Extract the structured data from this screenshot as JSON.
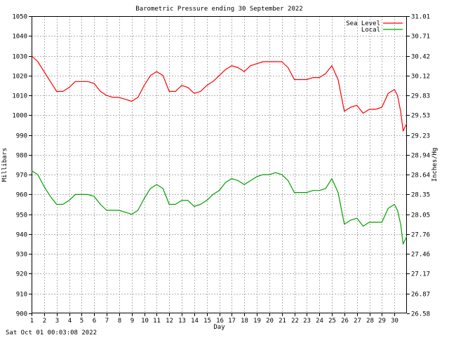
{
  "footer_timestamp": "Sat Oct 01 00:03:08 2022",
  "chart_data": {
    "type": "line",
    "title": "Barometric Pressure ending 30 September 2022",
    "xlabel": "Day",
    "ylabel": "Millibars",
    "y2label": "Inches/Hg",
    "xlim": [
      1,
      31
    ],
    "ylim": [
      900,
      1050
    ],
    "y_ticks": [
      900,
      910,
      920,
      930,
      940,
      950,
      960,
      970,
      980,
      990,
      1000,
      1010,
      1020,
      1030,
      1040,
      1050
    ],
    "y_tick_labels": [
      "900",
      "910",
      "920",
      "930",
      "940",
      "950",
      "960",
      "970",
      "980",
      "990",
      "1000",
      "1010",
      "1020",
      "1030",
      "1040",
      "1050"
    ],
    "y2_ticks": [
      900,
      910,
      920,
      930,
      940,
      950,
      960,
      970,
      980,
      990,
      1000,
      1010,
      1020,
      1030,
      1040,
      1050
    ],
    "y2_tick_labels": [
      "26.58",
      "26.87",
      "27.17",
      "27.46",
      "27.76",
      "28.05",
      "28.35",
      "28.64",
      "28.94",
      "29.23",
      "29.53",
      "29.83",
      "30.12",
      "30.42",
      "30.71",
      "31.01"
    ],
    "x_ticks": [
      1,
      2,
      3,
      4,
      5,
      6,
      7,
      8,
      9,
      10,
      11,
      12,
      13,
      14,
      15,
      16,
      17,
      18,
      19,
      20,
      21,
      22,
      23,
      24,
      25,
      26,
      27,
      28,
      29,
      30
    ],
    "x_tick_labels": [
      "1",
      "2",
      "3",
      "4",
      "5",
      "6",
      "7",
      "8",
      "9",
      "10",
      "11",
      "12",
      "13",
      "14",
      "15",
      "16",
      "17",
      "18",
      "19",
      "20",
      "21",
      "22",
      "23",
      "24",
      "25",
      "26",
      "27",
      "28",
      "29",
      "30"
    ],
    "grid": true,
    "legend_position": "top-right",
    "series": [
      {
        "name": "Sea Level",
        "color": "#ff0000",
        "x": [
          1.0,
          1.5,
          2.0,
          2.5,
          3.0,
          3.5,
          4.0,
          4.5,
          5.0,
          5.5,
          6.0,
          6.5,
          7.0,
          7.5,
          8.0,
          8.5,
          9.0,
          9.5,
          10.0,
          10.5,
          11.0,
          11.5,
          12.0,
          12.5,
          13.0,
          13.5,
          14.0,
          14.5,
          15.0,
          15.5,
          16.0,
          16.5,
          17.0,
          17.5,
          18.0,
          18.5,
          19.0,
          19.5,
          20.0,
          20.5,
          21.0,
          21.5,
          22.0,
          22.5,
          23.0,
          23.5,
          24.0,
          24.5,
          25.0,
          25.5,
          26.0,
          26.5,
          27.0,
          27.5,
          28.0,
          28.5,
          29.0,
          29.5,
          30.0,
          30.25,
          30.5,
          30.7,
          31.0
        ],
        "y": [
          1030,
          1027,
          1022,
          1017,
          1012,
          1012,
          1014,
          1017,
          1017,
          1017,
          1016,
          1012,
          1010,
          1009,
          1009,
          1008,
          1007,
          1009,
          1015,
          1020,
          1022,
          1020,
          1012,
          1012,
          1015,
          1014,
          1011,
          1012,
          1015,
          1017,
          1020,
          1023,
          1025,
          1024,
          1022,
          1025,
          1026,
          1027,
          1027,
          1027,
          1027,
          1024,
          1018,
          1018,
          1018,
          1019,
          1019,
          1021,
          1025,
          1018,
          1002,
          1004,
          1005,
          1001,
          1003,
          1003,
          1004,
          1011,
          1013,
          1010,
          1002,
          992,
          996
        ]
      },
      {
        "name": "Local",
        "color": "#00a000",
        "x": [
          1.0,
          1.5,
          2.0,
          2.5,
          3.0,
          3.5,
          4.0,
          4.5,
          5.0,
          5.5,
          6.0,
          6.5,
          7.0,
          7.5,
          8.0,
          8.5,
          9.0,
          9.5,
          10.0,
          10.5,
          11.0,
          11.5,
          12.0,
          12.5,
          13.0,
          13.5,
          14.0,
          14.5,
          15.0,
          15.5,
          16.0,
          16.5,
          17.0,
          17.5,
          18.0,
          18.5,
          19.0,
          19.5,
          20.0,
          20.5,
          21.0,
          21.5,
          22.0,
          22.5,
          23.0,
          23.5,
          24.0,
          24.5,
          25.0,
          25.5,
          26.0,
          26.5,
          27.0,
          27.5,
          28.0,
          28.5,
          29.0,
          29.5,
          30.0,
          30.25,
          30.5,
          30.7,
          31.0
        ],
        "y": [
          972,
          970,
          964,
          959,
          955,
          955,
          957,
          960,
          960,
          960,
          959,
          955,
          952,
          952,
          952,
          951,
          950,
          952,
          958,
          963,
          965,
          963,
          955,
          955,
          957,
          957,
          954,
          955,
          957,
          960,
          962,
          966,
          968,
          967,
          965,
          967,
          969,
          970,
          970,
          971,
          970,
          967,
          961,
          961,
          961,
          962,
          962,
          963,
          968,
          961,
          945,
          947,
          948,
          944,
          946,
          946,
          946,
          953,
          955,
          952,
          945,
          935,
          939
        ]
      }
    ]
  }
}
